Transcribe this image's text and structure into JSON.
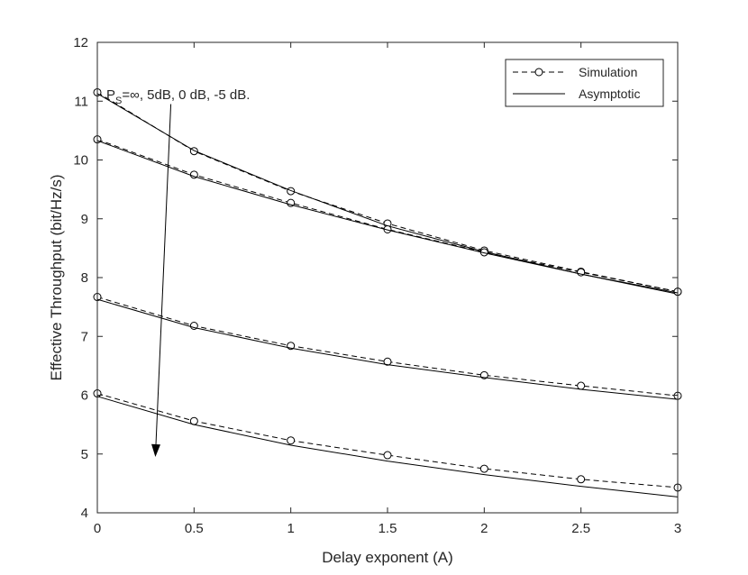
{
  "chart_data": {
    "type": "line",
    "title": "",
    "xlabel": "Delay exponent (A)",
    "ylabel": "Effective Throughput (bit/Hz/s)",
    "xlim": [
      0,
      3
    ],
    "ylim": [
      4,
      12
    ],
    "xticks": [
      0,
      0.5,
      1,
      1.5,
      2,
      2.5,
      3
    ],
    "xtick_labels": [
      "0",
      "0.5",
      "1",
      "1.5",
      "2",
      "2.5",
      "3"
    ],
    "yticks": [
      4,
      5,
      6,
      7,
      8,
      9,
      10,
      11,
      12
    ],
    "ytick_labels": [
      "4",
      "5",
      "6",
      "7",
      "8",
      "9",
      "10",
      "11",
      "12"
    ],
    "grid": false,
    "legend": {
      "placement": "top-right",
      "entries": [
        {
          "label": "Simulation",
          "style": "dashed",
          "marker": "circle"
        },
        {
          "label": "Asymptotic",
          "style": "solid",
          "marker": "none"
        }
      ]
    },
    "x": [
      0,
      0.5,
      1,
      1.5,
      2,
      2.5,
      3
    ],
    "series": [
      {
        "style": "dashed",
        "marker": "circle",
        "values": [
          11.15,
          10.15,
          9.47,
          8.92,
          8.46,
          8.1,
          7.76
        ]
      },
      {
        "style": "solid",
        "marker": "none",
        "values": [
          11.13,
          10.16,
          9.48,
          8.88,
          8.44,
          8.06,
          7.72
        ]
      },
      {
        "style": "dashed",
        "marker": "circle",
        "values": [
          10.35,
          9.75,
          9.27,
          8.82,
          8.43,
          8.09,
          7.76
        ]
      },
      {
        "style": "solid",
        "marker": "none",
        "values": [
          10.33,
          9.72,
          9.24,
          8.81,
          8.42,
          8.06,
          7.74
        ]
      },
      {
        "style": "dashed",
        "marker": "circle",
        "values": [
          7.67,
          7.18,
          6.84,
          6.57,
          6.34,
          6.16,
          5.99
        ]
      },
      {
        "style": "solid",
        "marker": "none",
        "values": [
          7.63,
          7.15,
          6.8,
          6.52,
          6.3,
          6.1,
          5.93
        ]
      },
      {
        "style": "dashed",
        "marker": "circle",
        "values": [
          6.03,
          5.56,
          5.23,
          4.98,
          4.75,
          4.57,
          4.43
        ]
      },
      {
        "style": "solid",
        "marker": "none",
        "values": [
          5.98,
          5.5,
          5.15,
          4.88,
          4.65,
          4.45,
          4.27
        ]
      }
    ],
    "annotation": {
      "text_p": "P",
      "text_sub": "S",
      "text_rest": "=∞, 5dB, 0 dB, -5 dB.",
      "arrow_from": [
        0.38,
        10.95
      ],
      "arrow_to": [
        0.3,
        4.95
      ]
    },
    "colors": {
      "line": "#000000",
      "axis": "#262626",
      "background": "#ffffff"
    }
  }
}
